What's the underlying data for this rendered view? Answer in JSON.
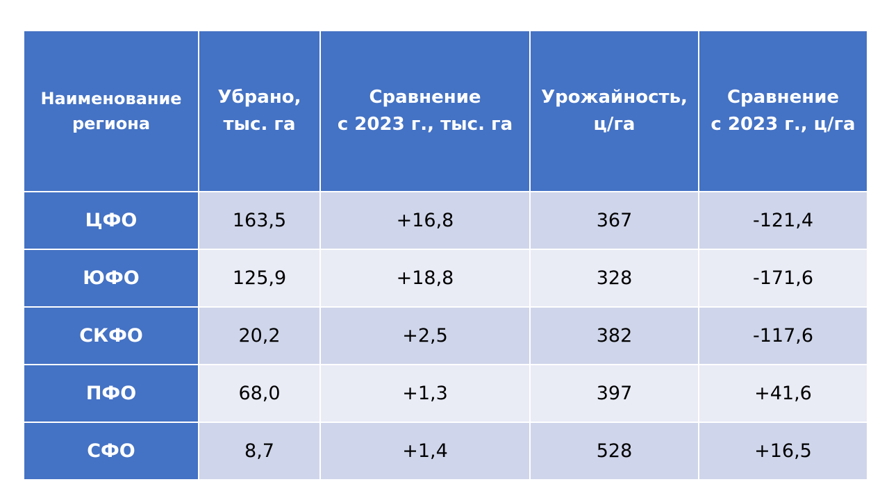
{
  "table": {
    "headers": [
      [
        "Наименование",
        "региона"
      ],
      [
        "Убрано,",
        "тыс. га"
      ],
      [
        "Сравнение",
        "с 2023 г., тыс. га"
      ],
      [
        "Урожайность,",
        "ц/га"
      ],
      [
        "Сравнение",
        "с 2023 г., ц/га"
      ]
    ],
    "rows": [
      [
        "ЦФО",
        "163,5",
        "+16,8",
        "367",
        "-121,4"
      ],
      [
        "ЮФО",
        "125,9",
        "+18,8",
        "328",
        "-171,6"
      ],
      [
        "СКФО",
        "20,2",
        "+2,5",
        "382",
        "-117,6"
      ],
      [
        "ПФО",
        "68,0",
        "+1,3",
        "397",
        "+41,6"
      ],
      [
        "СФО",
        "8,7",
        "+1,4",
        "528",
        "+16,5"
      ]
    ]
  },
  "colors": {
    "header_bg": "#4472c4",
    "row_odd_bg": "#cfd5ea",
    "row_even_bg": "#e9ebf5"
  }
}
